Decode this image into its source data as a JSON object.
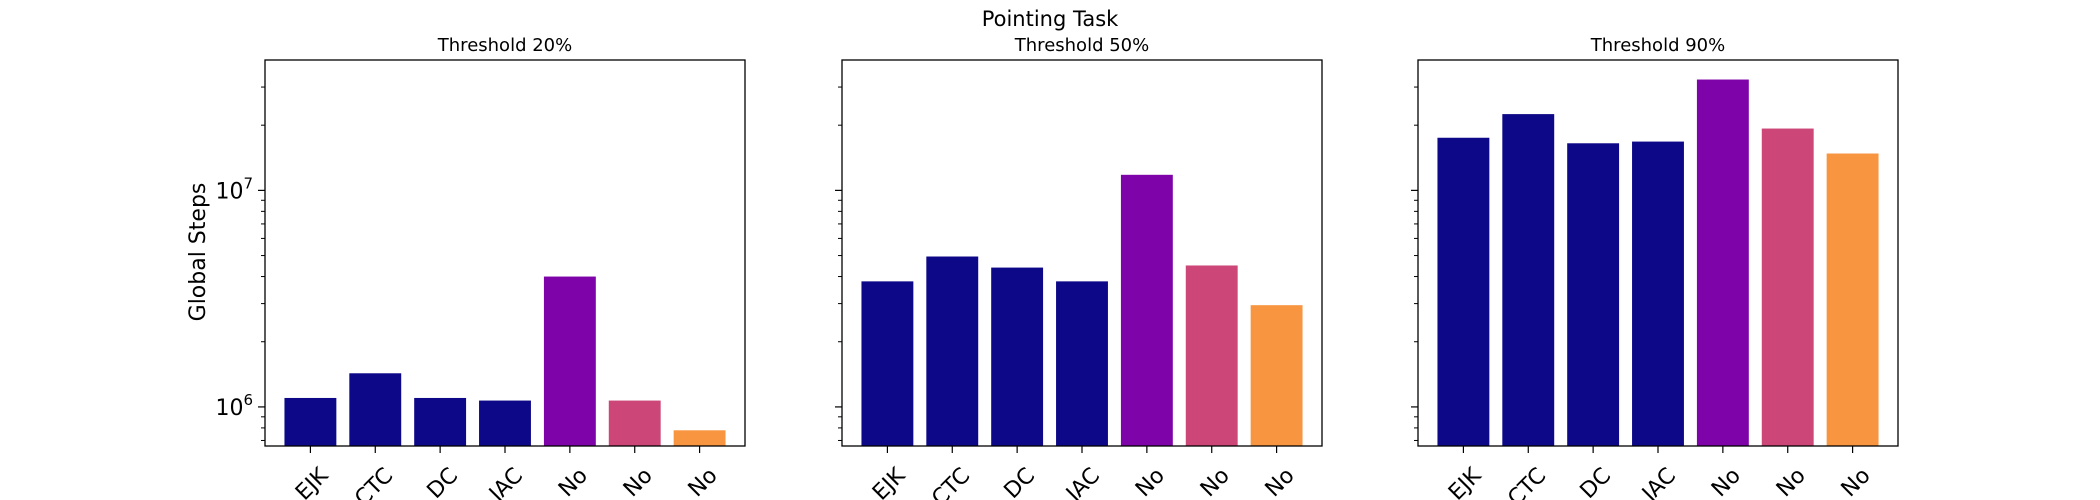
{
  "chart_data": {
    "type": "bar",
    "title": "Pointing Task",
    "ylabel": "Global Steps",
    "yscale": "log",
    "ylim": [
      660000,
      40000000
    ],
    "shared_y": true,
    "colors": [
      "#0d0887",
      "#0d0887",
      "#0d0887",
      "#0d0887",
      "#7e03a8",
      "#cc4778",
      "#f89540"
    ],
    "yticks": [
      {
        "base": "10",
        "exp": "6",
        "value": 1000000
      },
      {
        "base": "10",
        "exp": "7",
        "value": 10000000
      }
    ],
    "panels": [
      {
        "title": "Threshold 20%",
        "categories": [
          "EJK",
          "CTC",
          "DC",
          "JAC",
          "No",
          "No",
          "No"
        ],
        "values": [
          1100000,
          1430000,
          1100000,
          1070000,
          4000000,
          1070000,
          780000
        ]
      },
      {
        "title": "Threshold 50%",
        "categories": [
          "EJK",
          "CTC",
          "DC",
          "JAC",
          "No",
          "No",
          "No"
        ],
        "values": [
          3800000,
          4950000,
          4400000,
          3800000,
          11800000,
          4500000,
          2950000
        ]
      },
      {
        "title": "Threshold 90%",
        "categories": [
          "EJK",
          "CTC",
          "DC",
          "JAC",
          "No",
          "No",
          "No"
        ],
        "values": [
          17500000,
          22500000,
          16500000,
          16800000,
          32500000,
          19300000,
          14800000
        ]
      }
    ]
  }
}
